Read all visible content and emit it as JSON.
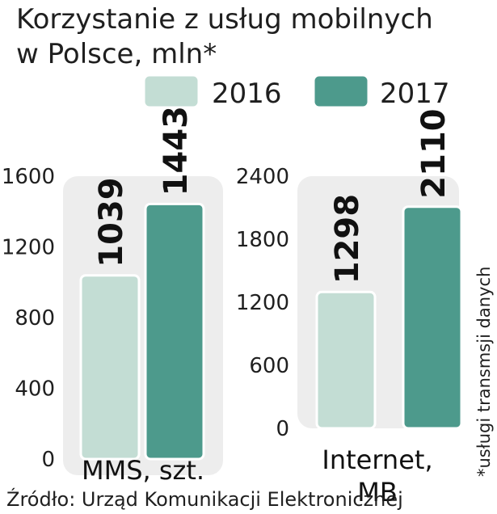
{
  "title_lines": [
    "Korzystanie z usług mobilnych",
    "w Polsce, mln*"
  ],
  "legend": [
    {
      "label": "2016",
      "color": "#c3ddd4"
    },
    {
      "label": "2017",
      "color": "#4d9a8c"
    }
  ],
  "colors": {
    "panel": "#ededed",
    "bar_2016": "#c3ddd4",
    "bar_2017": "#4d9a8c",
    "bar_outline": "#ffffff"
  },
  "chart_data": [
    {
      "type": "bar",
      "category": "MMS, szt.",
      "category_lines": [
        "MMS, szt."
      ],
      "series": [
        {
          "name": "2016",
          "values": [
            1039
          ]
        },
        {
          "name": "2017",
          "values": [
            1443
          ]
        }
      ],
      "ylim": [
        0,
        1600
      ],
      "yticks": [
        "0",
        "400",
        "800",
        "1200",
        "1600"
      ],
      "value_labels": [
        "1039",
        "1443"
      ]
    },
    {
      "type": "bar",
      "category": "Internet, MB",
      "category_lines": [
        "Internet,",
        "MB"
      ],
      "series": [
        {
          "name": "2016",
          "values": [
            1298
          ]
        },
        {
          "name": "2017",
          "values": [
            2110
          ]
        }
      ],
      "ylim": [
        0,
        2400
      ],
      "yticks": [
        "0",
        "600",
        "1200",
        "1800",
        "2400"
      ],
      "value_labels": [
        "1298",
        "2110"
      ]
    }
  ],
  "source": "Źródło: Urząd Komunikacji Elektronicznej",
  "footnote": "*usługi transmsji danych"
}
